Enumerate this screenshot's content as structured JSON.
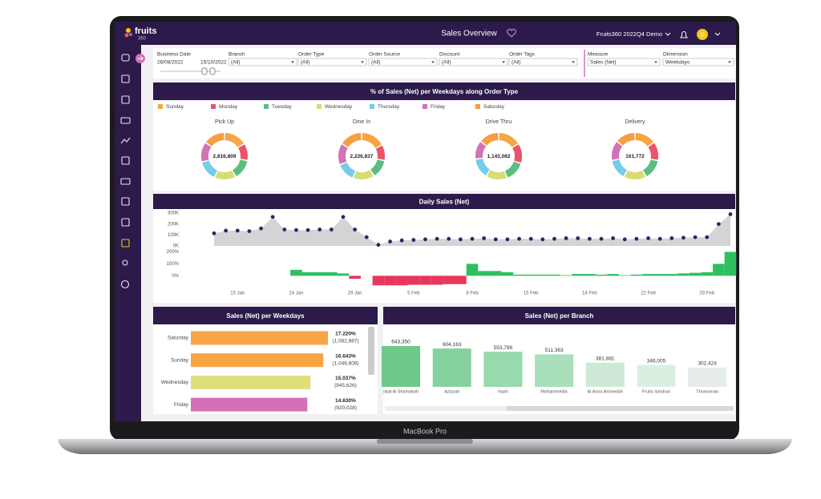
{
  "device": {
    "label": "MacBook Pro"
  },
  "header": {
    "logo": "fruits",
    "logo_sub": "360",
    "title": "Sales Overview",
    "account": "Fruits360 2022Q4 Demo",
    "avatar": "O"
  },
  "filters": [
    {
      "label": "Business Date",
      "value": "26/08/2022",
      "value_end": "15/10/2022"
    },
    {
      "label": "Branch",
      "value": "(All)"
    },
    {
      "label": "Order Type",
      "value": "(All)"
    },
    {
      "label": "Order Source",
      "value": "(All)"
    },
    {
      "label": "Discount",
      "value": "(All)"
    },
    {
      "label": "Order Tags",
      "value": "(All)"
    },
    {
      "label": "Measure",
      "value": "Sales (Net)"
    },
    {
      "label": "Dimension",
      "value": "Weekdays"
    }
  ],
  "chart_data": [
    {
      "type": "donut",
      "title": "% of Sales (Net) per Weekdays along Order Type",
      "categories": [
        "Sunday",
        "Monday",
        "Tuesday",
        "Wednesday",
        "Thursday",
        "Friday",
        "Saturday"
      ],
      "colors": [
        "#f7a545",
        "#e9536b",
        "#5cbd80",
        "#d9dc72",
        "#74cde9",
        "#d173b5",
        "#f59e42"
      ],
      "panels": [
        {
          "title": "Pick Up",
          "total": {
            "value": 2816809,
            "label": "2,816,809"
          },
          "values": [
            16,
            12,
            14,
            15,
            14,
            14,
            15
          ]
        },
        {
          "title": "Dine In",
          "total": {
            "value": 2226837,
            "label": "2,226,837"
          },
          "values": [
            17,
            11,
            13,
            15,
            13,
            15,
            16
          ]
        },
        {
          "title": "Drive Thru",
          "total": {
            "value": 1143082,
            "label": "1,143,082"
          },
          "values": [
            16,
            14,
            14,
            15,
            14,
            13,
            14
          ]
        },
        {
          "title": "Delivery",
          "total": {
            "value": 161772,
            "label": "161,772"
          },
          "values": [
            15,
            13,
            14,
            16,
            14,
            14,
            14
          ]
        }
      ]
    },
    {
      "type": "combo",
      "title": "Daily Sales (Net)",
      "categories": [
        null,
        null,
        "15 Jan",
        null,
        null,
        null,
        null,
        "24 Jan",
        null,
        null,
        null,
        null,
        "29 Jan",
        null,
        null,
        null,
        null,
        "5 Feb",
        null,
        null,
        null,
        null,
        "8 Feb",
        null,
        null,
        null,
        null,
        "15 Feb",
        null,
        null,
        null,
        null,
        "18 Feb",
        null,
        null,
        null,
        null,
        "22 Feb",
        null,
        null,
        null,
        null,
        "28 Feb",
        null,
        null
      ],
      "ylim": [
        0,
        330000
      ],
      "yticks": [
        {
          "value": 300000,
          "label": "300K"
        },
        {
          "value": 200000,
          "label": "200K"
        },
        {
          "value": 100000,
          "label": "100K"
        },
        {
          "value": 0,
          "label": "0K"
        }
      ],
      "y2lim": [
        -85,
        210
      ],
      "y2ticks": [
        {
          "value": 200,
          "label": "200%"
        },
        {
          "value": 100,
          "label": "100%"
        },
        {
          "value": 0,
          "label": "0%"
        }
      ],
      "series": [
        {
          "color": "#2e2466",
          "area_color": "#d4d4d6",
          "values": [
            115000,
            140000,
            140000,
            135000,
            160000,
            265000,
            150000,
            145000,
            145000,
            150000,
            150000,
            265000,
            150000,
            80000,
            10000,
            40000,
            50000,
            55000,
            60000,
            65000,
            65000,
            60000,
            65000,
            70000,
            60000,
            60000,
            65000,
            65000,
            60000,
            65000,
            70000,
            70000,
            65000,
            65000,
            70000,
            60000,
            65000,
            70000,
            65000,
            70000,
            75000,
            80000,
            80000,
            200000,
            290000
          ]
        },
        {
          "axis": "y2",
          "positive_color": "#2fbf5f",
          "negative_color": "#e8365d",
          "values": [
            null,
            null,
            null,
            null,
            null,
            null,
            null,
            50,
            30,
            30,
            30,
            20,
            -25,
            null,
            -80,
            -80,
            -80,
            -75,
            -75,
            -75,
            -70,
            -70,
            100,
            40,
            40,
            30,
            10,
            10,
            10,
            10,
            5,
            15,
            15,
            10,
            15,
            5,
            10,
            15,
            15,
            15,
            20,
            25,
            30,
            100,
            200
          ]
        }
      ]
    },
    {
      "type": "hbar",
      "title": "Sales (Net) per Weekdays",
      "categories": [
        "Saturday",
        "Sunday",
        "Wednesday",
        "Friday"
      ],
      "values": [
        17.22,
        16.643,
        15.037,
        14.63
      ],
      "value_labels": [
        "17.220%",
        "16.643%",
        "15.037%",
        "14.630%"
      ],
      "amount_labels": [
        "(1,082,887)",
        "(1,046,608)",
        "(945,626)",
        "(920,028)"
      ],
      "colors": [
        "#f7a545",
        "#f7a545",
        "#dde07a",
        "#d370b7"
      ]
    },
    {
      "type": "bar",
      "title": "Sales (Net) per Branch",
      "categories": [
        "obal Al Shamakah",
        "Azizyah",
        "Irqah",
        "Mohammedia",
        "Al Anoa Amowdah",
        "Fruits Ismdran",
        "Thomaman"
      ],
      "values": [
        643350,
        604163,
        553798,
        511363,
        381881,
        346005,
        302424
      ],
      "value_labels": [
        "643,350",
        "604,163",
        "553,798",
        "511,363",
        "381,881",
        "346,005",
        "302,424"
      ],
      "colors": [
        "#6dca8c",
        "#86d29f",
        "#98d9ad",
        "#a9dfba",
        "#cde9d6",
        "#dbefe1",
        "#e6ece8"
      ]
    }
  ]
}
